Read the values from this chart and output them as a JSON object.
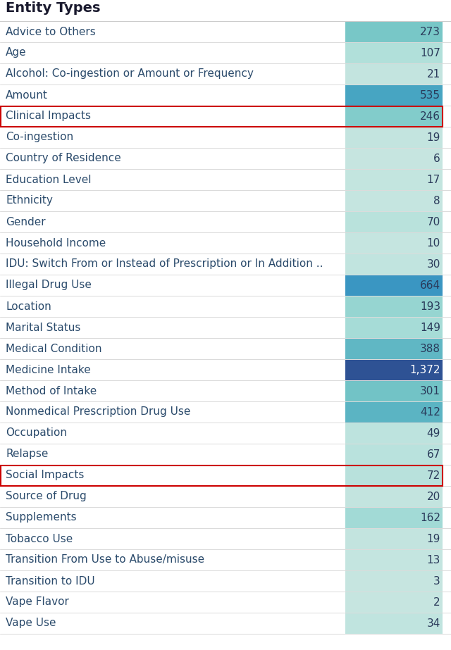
{
  "title": "Entity Types",
  "rows": [
    {
      "label": "Advice to Others",
      "value": 273
    },
    {
      "label": "Age",
      "value": 107
    },
    {
      "label": "Alcohol: Co-ingestion or Amount or Frequency",
      "value": 21
    },
    {
      "label": "Amount",
      "value": 535
    },
    {
      "label": "Clinical Impacts",
      "value": 246,
      "highlighted": true
    },
    {
      "label": "Co-ingestion",
      "value": 19
    },
    {
      "label": "Country of Residence",
      "value": 6
    },
    {
      "label": "Education Level",
      "value": 17
    },
    {
      "label": "Ethnicity",
      "value": 8
    },
    {
      "label": "Gender",
      "value": 70
    },
    {
      "label": "Household Income",
      "value": 10
    },
    {
      "label": "IDU: Switch From or Instead of Prescription or In Addition ..",
      "value": 30
    },
    {
      "label": "Illegal Drug Use",
      "value": 664
    },
    {
      "label": "Location",
      "value": 193
    },
    {
      "label": "Marital Status",
      "value": 149
    },
    {
      "label": "Medical Condition",
      "value": 388
    },
    {
      "label": "Medicine Intake",
      "value": 1372
    },
    {
      "label": "Method of Intake",
      "value": 301
    },
    {
      "label": "Nonmedical Prescription Drug Use",
      "value": 412
    },
    {
      "label": "Occupation",
      "value": 49
    },
    {
      "label": "Relapse",
      "value": 67
    },
    {
      "label": "Social Impacts",
      "value": 72,
      "highlighted": true
    },
    {
      "label": "Source of Drug",
      "value": 20
    },
    {
      "label": "Supplements",
      "value": 162
    },
    {
      "label": "Tobacco Use",
      "value": 19
    },
    {
      "label": "Transition From Use to Abuse/misuse",
      "value": 13
    },
    {
      "label": "Transition to IDU",
      "value": 3
    },
    {
      "label": "Vape Flavor",
      "value": 2
    },
    {
      "label": "Vape Use",
      "value": 34
    }
  ],
  "max_value": 1372,
  "title_fontsize": 14,
  "row_fontsize": 11,
  "value_fontsize": 11,
  "background_color": "#ffffff",
  "highlight_color": "#cc0000",
  "text_color": "#2e4057",
  "label_color": "#2e4057",
  "color_stops": [
    [
      0.0,
      [
        0.78,
        0.9,
        0.88
      ]
    ],
    [
      0.1,
      [
        0.67,
        0.87,
        0.85
      ]
    ],
    [
      0.2,
      [
        0.47,
        0.78,
        0.78
      ]
    ],
    [
      0.35,
      [
        0.3,
        0.67,
        0.76
      ]
    ],
    [
      0.5,
      [
        0.22,
        0.58,
        0.76
      ]
    ],
    [
      0.65,
      [
        0.18,
        0.48,
        0.72
      ]
    ],
    [
      1.0,
      [
        0.18,
        0.32,
        0.58
      ]
    ]
  ]
}
